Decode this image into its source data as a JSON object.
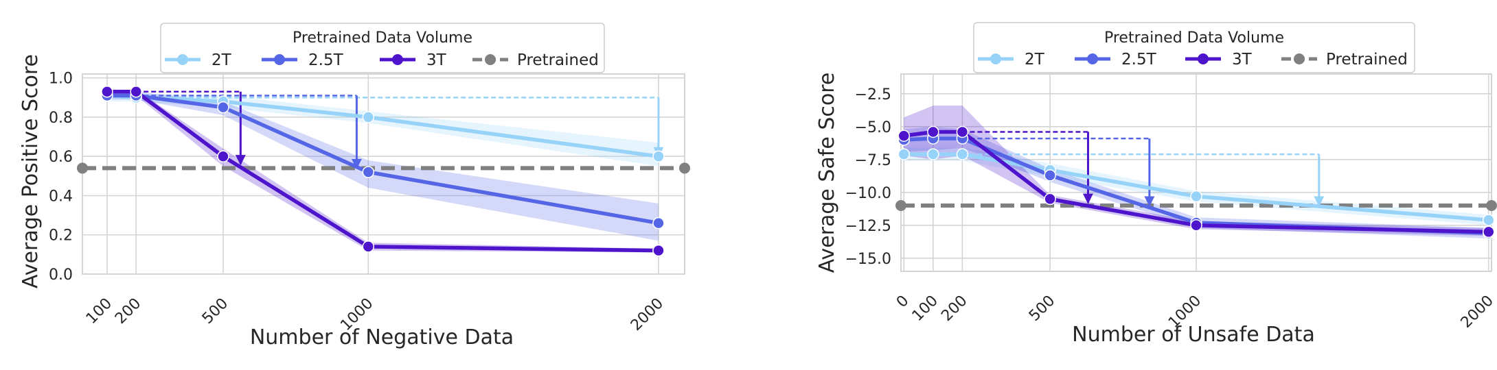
{
  "colors": {
    "2T": "#97d3f9",
    "2.5T": "#5466e6",
    "3T": "#4d14cc",
    "Pretrained": "#808080"
  },
  "chart_data": [
    {
      "type": "line",
      "legend_title": "Pretrained Data Volume",
      "legend_placement": "top-center",
      "xlabel": "Number of Negative Data",
      "ylabel": "Average Positive Score",
      "x_ticks": [
        100,
        200,
        500,
        1000,
        2000
      ],
      "xlim": [
        15,
        2090
      ],
      "ylim": [
        0.0,
        1.02
      ],
      "y_ticks": [
        "0.0",
        "0.2",
        "0.4",
        "0.6",
        "0.8",
        "1.0"
      ],
      "y_tick_values": [
        0.0,
        0.2,
        0.4,
        0.6,
        0.8,
        1.0
      ],
      "grid": true,
      "series": [
        {
          "name": "2T",
          "x": [
            100,
            200,
            500,
            1000,
            2000
          ],
          "values": [
            0.91,
            0.9,
            0.88,
            0.8,
            0.6
          ],
          "band_low": [
            0.88,
            0.88,
            0.85,
            0.77,
            0.55
          ],
          "band_high": [
            0.93,
            0.92,
            0.91,
            0.83,
            0.67
          ]
        },
        {
          "name": "2.5T",
          "x": [
            100,
            200,
            500,
            1000,
            2000
          ],
          "values": [
            0.91,
            0.91,
            0.85,
            0.52,
            0.26
          ],
          "band_low": [
            0.89,
            0.89,
            0.81,
            0.44,
            0.17
          ],
          "band_high": [
            0.93,
            0.93,
            0.88,
            0.58,
            0.36
          ]
        },
        {
          "name": "3T",
          "x": [
            100,
            200,
            500,
            1000,
            2000
          ],
          "values": [
            0.93,
            0.93,
            0.6,
            0.14,
            0.12
          ],
          "band_low": [
            0.91,
            0.91,
            0.55,
            0.12,
            0.11
          ],
          "band_high": [
            0.94,
            0.94,
            0.64,
            0.16,
            0.13
          ]
        }
      ],
      "pretrained_baseline": 0.54,
      "annotations": [
        {
          "series": "2T",
          "from_x": 200,
          "to_x": 2000,
          "top": 0.9,
          "bottom": 0.6
        },
        {
          "series": "2.5T",
          "from_x": 200,
          "to_x": 960,
          "top": 0.91,
          "bottom": 0.54
        },
        {
          "series": "3T",
          "from_x": 200,
          "to_x": 560,
          "top": 0.93,
          "bottom": 0.56
        }
      ]
    },
    {
      "type": "line",
      "legend_title": "Pretrained Data Volume",
      "legend_placement": "top-center",
      "xlabel": "Number of Unsafe Data",
      "ylabel": "Average Safe Score",
      "x_ticks": [
        0,
        100,
        200,
        500,
        1000,
        2000
      ],
      "xlim": [
        -10,
        2010
      ],
      "ylim": [
        -16.0,
        -1.0
      ],
      "y_ticks": [
        "−2.5",
        "−5.0",
        "−7.5",
        "−10.0",
        "−12.5",
        "−15.0"
      ],
      "y_tick_values": [
        -2.5,
        -5.0,
        -7.5,
        -10.0,
        -12.5,
        -15.0
      ],
      "grid": true,
      "series": [
        {
          "name": "2T",
          "x": [
            0,
            100,
            200,
            500,
            1000,
            2000
          ],
          "values": [
            -7.1,
            -7.1,
            -7.1,
            -8.3,
            -10.3,
            -12.1
          ],
          "band_low": [
            -7.6,
            -7.6,
            -7.6,
            -8.8,
            -10.7,
            -12.5
          ],
          "band_high": [
            -6.6,
            -6.6,
            -6.6,
            -7.8,
            -9.9,
            -11.7
          ]
        },
        {
          "name": "2.5T",
          "x": [
            0,
            100,
            200,
            500,
            1000,
            2000
          ],
          "values": [
            -6.0,
            -5.9,
            -5.9,
            -8.7,
            -12.3,
            -13.1
          ],
          "band_low": [
            -6.9,
            -6.8,
            -6.6,
            -9.2,
            -12.7,
            -13.5
          ],
          "band_high": [
            -5.2,
            -5.0,
            -5.2,
            -8.2,
            -11.9,
            -12.7
          ]
        },
        {
          "name": "3T",
          "x": [
            0,
            100,
            200,
            500,
            1000,
            2000
          ],
          "values": [
            -5.7,
            -5.4,
            -5.4,
            -10.5,
            -12.5,
            -13.0
          ],
          "band_low": [
            -7.2,
            -7.5,
            -7.2,
            -10.8,
            -12.8,
            -13.3
          ],
          "band_high": [
            -4.3,
            -3.4,
            -3.4,
            -10.2,
            -12.2,
            -12.7
          ]
        }
      ],
      "pretrained_baseline": -11.0,
      "annotations": [
        {
          "series": "2T",
          "from_x": 200,
          "to_x": 1420,
          "top": -7.1,
          "bottom": -11.0
        },
        {
          "series": "2.5T",
          "from_x": 200,
          "to_x": 840,
          "top": -5.9,
          "bottom": -11.0
        },
        {
          "series": "3T",
          "from_x": 200,
          "to_x": 630,
          "top": -5.4,
          "bottom": -10.8
        }
      ]
    }
  ]
}
